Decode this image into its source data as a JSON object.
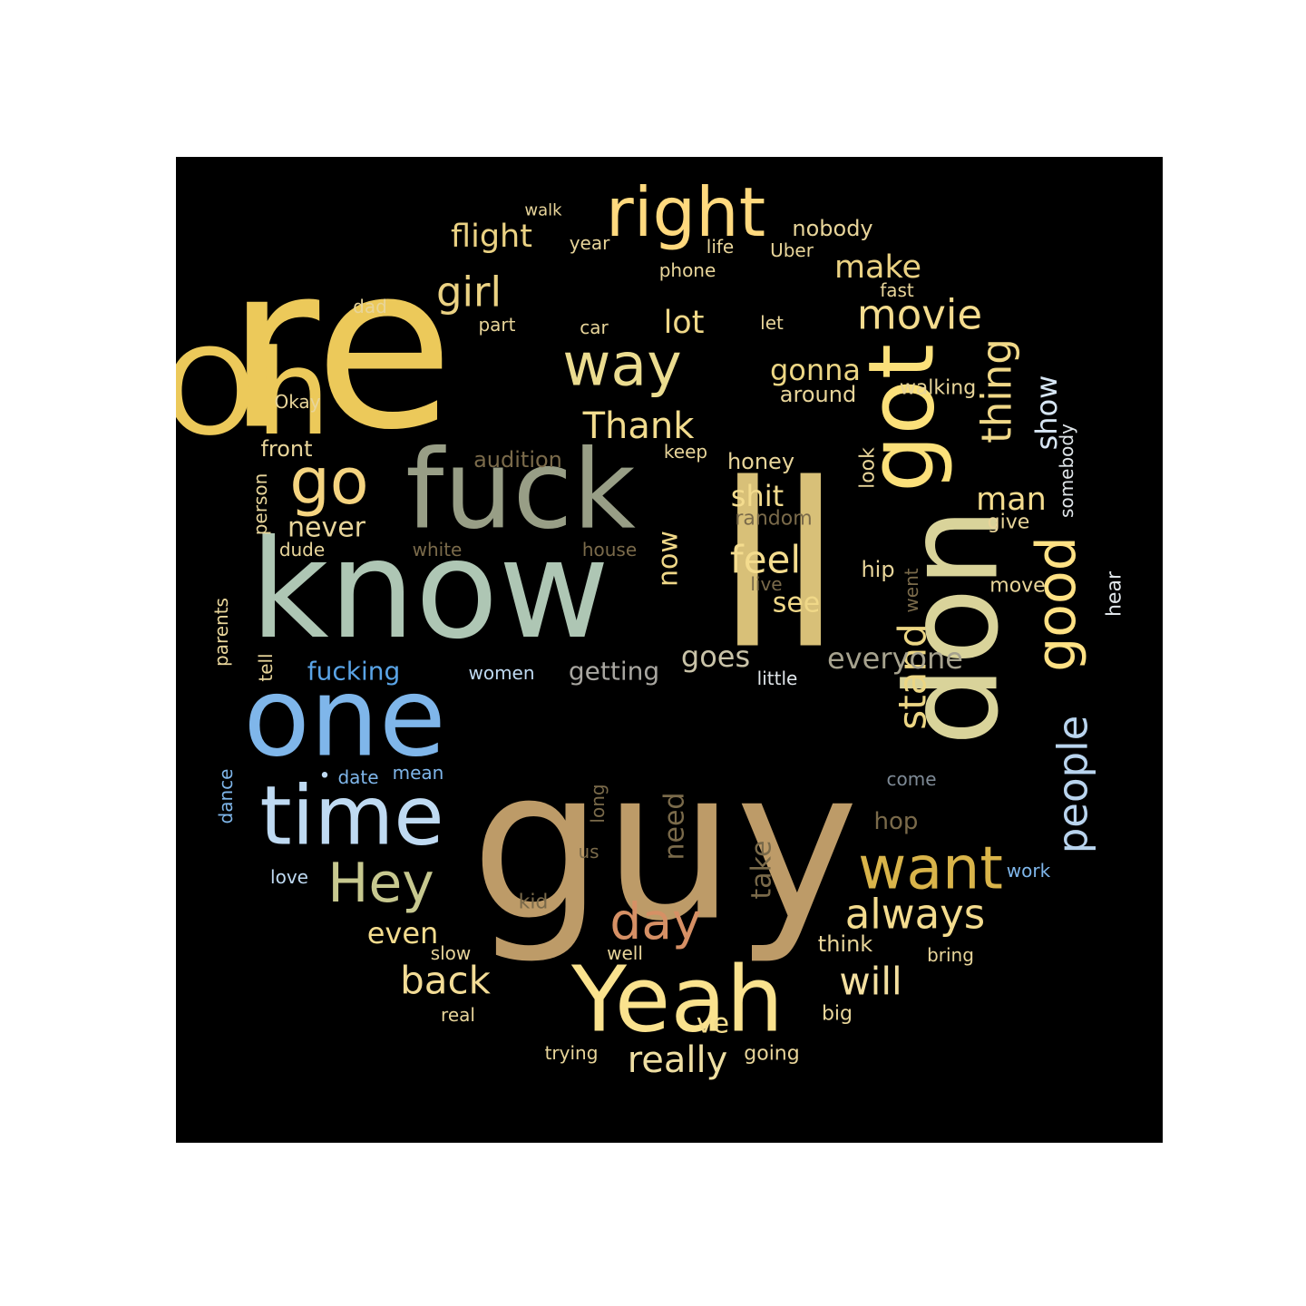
{
  "words": [
    {
      "text": "re",
      "color": "#ecc95a"
    },
    {
      "text": "ll",
      "color": "#d8c078"
    },
    {
      "text": "guy",
      "color": "#bd9b68"
    },
    {
      "text": "know",
      "color": "#aec6b4"
    },
    {
      "text": "don",
      "color": "#d9d39a"
    },
    {
      "text": "Oh",
      "color": "#ecc95a"
    },
    {
      "text": "fuck",
      "color": "#989e86"
    },
    {
      "text": "one",
      "color": "#7fb6ea"
    },
    {
      "text": "time",
      "color": "#bfdaf2"
    },
    {
      "text": "Yeah",
      "color": "#fae28e"
    },
    {
      "text": "got",
      "color": "#fbe07a"
    },
    {
      "text": "right",
      "color": "#ffd97e"
    },
    {
      "text": "go",
      "color": "#f5d480"
    },
    {
      "text": "way",
      "color": "#ebdc90"
    },
    {
      "text": "good",
      "color": "#ffe184"
    },
    {
      "text": "want",
      "color": "#d9b44a"
    },
    {
      "text": "Hey",
      "color": "#c7c88f"
    },
    {
      "text": "day",
      "color": "#d69065"
    },
    {
      "text": "people",
      "color": "#b9d4ee"
    },
    {
      "text": "girl",
      "color": "#ebd283"
    },
    {
      "text": "Thank",
      "color": "#f2dc8e"
    },
    {
      "text": "movie",
      "color": "#f4dc8e"
    },
    {
      "text": "thing",
      "color": "#f0d888"
    },
    {
      "text": "always",
      "color": "#f4dc8e"
    },
    {
      "text": "back",
      "color": "#f3dc96"
    },
    {
      "text": "will",
      "color": "#f4e0a0"
    },
    {
      "text": "really",
      "color": "#eedea2"
    },
    {
      "text": "feel",
      "color": "#f4dc8e"
    },
    {
      "text": "stand",
      "color": "#ecd684"
    },
    {
      "text": "flight",
      "color": "#ebd283"
    },
    {
      "text": "make",
      "color": "#ebd283"
    },
    {
      "text": "lot",
      "color": "#f0d888"
    },
    {
      "text": "man",
      "color": "#f4dc8e"
    },
    {
      "text": "shit",
      "color": "#f4dc8e"
    },
    {
      "text": "show",
      "color": "#d7e6f4"
    },
    {
      "text": "gonna",
      "color": "#ecd684"
    },
    {
      "text": "never",
      "color": "#e8d59a"
    },
    {
      "text": "even",
      "color": "#f4dc8e"
    },
    {
      "text": "see",
      "color": "#f0d888"
    },
    {
      "text": "now",
      "color": "#f0d888"
    },
    {
      "text": "goes",
      "color": "#c9c3a8"
    },
    {
      "text": "everyone",
      "color": "#a6a28e"
    },
    {
      "text": "getting",
      "color": "#a8a6a0"
    },
    {
      "text": "fucking",
      "color": "#5aa4e6"
    },
    {
      "text": "need",
      "color": "#7a6a4a"
    },
    {
      "text": "take",
      "color": "#7a6a4a"
    },
    {
      "text": "ve",
      "color": "#f4dc8e"
    },
    {
      "text": "around",
      "color": "#e8d59a"
    },
    {
      "text": "audition",
      "color": "#7a6a4a"
    },
    {
      "text": "honey",
      "color": "#e8d59a"
    },
    {
      "text": "nobody",
      "color": "#e8d59a"
    },
    {
      "text": "front",
      "color": "#e8d59a"
    },
    {
      "text": "random",
      "color": "#7a6a4a"
    },
    {
      "text": "walking",
      "color": "#e8d59a"
    },
    {
      "text": "look",
      "color": "#e8d59a"
    },
    {
      "text": "hip",
      "color": "#e8d59a"
    },
    {
      "text": "somebody",
      "color": "#e0e6ea"
    },
    {
      "text": "give",
      "color": "#e8d59a"
    },
    {
      "text": "move",
      "color": "#e8d59a"
    },
    {
      "text": "hear",
      "color": "#e0e6ea"
    },
    {
      "text": "hop",
      "color": "#7a6a4a"
    },
    {
      "text": "come",
      "color": "#7e8a96"
    },
    {
      "text": "work",
      "color": "#7fb6ea"
    },
    {
      "text": "think",
      "color": "#e8d59a"
    },
    {
      "text": "bring",
      "color": "#e8d59a"
    },
    {
      "text": "big",
      "color": "#e8d59a"
    },
    {
      "text": "going",
      "color": "#e8d59a"
    },
    {
      "text": "trying",
      "color": "#e8d59a"
    },
    {
      "text": "real",
      "color": "#e8d59a"
    },
    {
      "text": "slow",
      "color": "#e8d59a"
    },
    {
      "text": "well",
      "color": "#e8d59a"
    },
    {
      "text": "kid",
      "color": "#7a6a4a"
    },
    {
      "text": "us",
      "color": "#7a6a4a"
    },
    {
      "text": "long",
      "color": "#7a6a4a"
    },
    {
      "text": "love",
      "color": "#bfdaf2"
    },
    {
      "text": "date",
      "color": "#7fb6ea"
    },
    {
      "text": "mean",
      "color": "#7fb6ea"
    },
    {
      "text": "dance",
      "color": "#7fb6ea"
    },
    {
      "text": "parents",
      "color": "#e8d59a"
    },
    {
      "text": "tell",
      "color": "#e8d59a"
    },
    {
      "text": "women",
      "color": "#bfdaf2"
    },
    {
      "text": "little",
      "color": "#e0e6ea"
    },
    {
      "text": "white",
      "color": "#7a6a4a"
    },
    {
      "text": "house",
      "color": "#7a6a4a"
    },
    {
      "text": "live",
      "color": "#7a6a4a"
    },
    {
      "text": "went",
      "color": "#7a6a4a"
    },
    {
      "text": "dude",
      "color": "#e8d59a"
    },
    {
      "text": "person",
      "color": "#e8d59a"
    },
    {
      "text": "keep",
      "color": "#e8d59a"
    },
    {
      "text": "Okay",
      "color": "#e8d59a"
    },
    {
      "text": "dad",
      "color": "#e8d59a"
    },
    {
      "text": "part",
      "color": "#e8d59a"
    },
    {
      "text": "car",
      "color": "#e8d59a"
    },
    {
      "text": "let",
      "color": "#e8d59a"
    },
    {
      "text": "fast",
      "color": "#e8d59a"
    },
    {
      "text": "phone",
      "color": "#e8d59a"
    },
    {
      "text": "life",
      "color": "#e8d59a"
    },
    {
      "text": "Uber",
      "color": "#e8d59a"
    },
    {
      "text": "year",
      "color": "#e8d59a"
    },
    {
      "text": "walk",
      "color": "#e8d59a"
    },
    {
      "text": "•",
      "color": "#bfdaf2"
    }
  ]
}
